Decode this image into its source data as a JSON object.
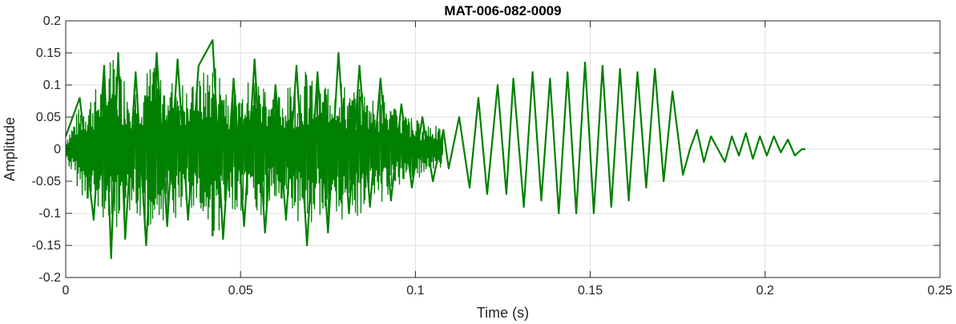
{
  "chart_data": {
    "type": "line",
    "title": "MAT-006-082-0009",
    "xlabel": "Time (s)",
    "ylabel": "Amplitude",
    "xlim": [
      0,
      0.25
    ],
    "ylim": [
      -0.2,
      0.2
    ],
    "xticks": [
      0,
      0.05,
      0.1,
      0.15,
      0.2,
      0.25
    ],
    "xtick_labels": [
      "0",
      "0.05",
      "0.1",
      "0.15",
      "0.2",
      "0.25"
    ],
    "yticks": [
      -0.2,
      -0.15,
      -0.1,
      -0.05,
      0,
      0.05,
      0.1,
      0.15,
      0.2
    ],
    "ytick_labels": [
      "-0.2",
      "-0.15",
      "-0.1",
      "-0.05",
      "0",
      "0.05",
      "0.1",
      "0.15",
      "0.2"
    ],
    "grid": true,
    "line_color": "#008000",
    "series": [
      {
        "x": [
          0,
          0.004,
          0.008,
          0.011,
          0.013,
          0.015,
          0.017,
          0.02,
          0.023,
          0.026,
          0.029,
          0.032,
          0.035,
          0.038,
          0.042,
          0.045,
          0.048,
          0.051,
          0.054,
          0.057,
          0.06,
          0.063,
          0.066,
          0.069,
          0.072,
          0.075,
          0.078,
          0.081,
          0.084,
          0.087,
          0.09,
          0.093,
          0.096,
          0.099,
          0.102,
          0.105,
          0.108,
          0.1095,
          0.1125,
          0.1155,
          0.118,
          0.1205,
          0.1235,
          0.126,
          0.128,
          0.131,
          0.1335,
          0.136,
          0.1385,
          0.141,
          0.1435,
          0.146,
          0.1485,
          0.151,
          0.1535,
          0.156,
          0.1585,
          0.161,
          0.1635,
          0.166,
          0.1685,
          0.171,
          0.1735,
          0.1765,
          0.1785,
          0.1805,
          0.1825,
          0.1845,
          0.1865,
          0.1885,
          0.1905,
          0.1925,
          0.1945,
          0.1965,
          0.1985,
          0.2005,
          0.2025,
          0.2045,
          0.2065,
          0.2085,
          0.2105,
          0.2115
        ],
        "y": [
          0.02,
          0.08,
          -0.11,
          0.13,
          -0.17,
          0.15,
          -0.14,
          0.12,
          -0.15,
          0.15,
          -0.12,
          0.14,
          -0.11,
          0.13,
          0.17,
          -0.14,
          0.11,
          -0.12,
          0.14,
          -0.13,
          0.1,
          -0.11,
          0.13,
          -0.15,
          0.12,
          -0.13,
          0.15,
          -0.1,
          0.13,
          -0.09,
          0.11,
          -0.08,
          0.07,
          -0.06,
          0.05,
          -0.05,
          0.03,
          -0.03,
          0.05,
          -0.06,
          0.08,
          -0.07,
          0.1,
          -0.07,
          0.11,
          -0.09,
          0.12,
          -0.08,
          0.11,
          -0.1,
          0.12,
          -0.1,
          0.135,
          -0.1,
          0.13,
          -0.09,
          0.125,
          -0.08,
          0.12,
          -0.06,
          0.125,
          -0.05,
          0.09,
          -0.04,
          0.0,
          0.03,
          -0.02,
          0.02,
          0.0,
          -0.02,
          0.02,
          -0.01,
          0.025,
          -0.015,
          0.02,
          -0.01,
          0.02,
          -0.005,
          0.015,
          -0.01,
          0.0,
          0.0
        ]
      }
    ]
  }
}
